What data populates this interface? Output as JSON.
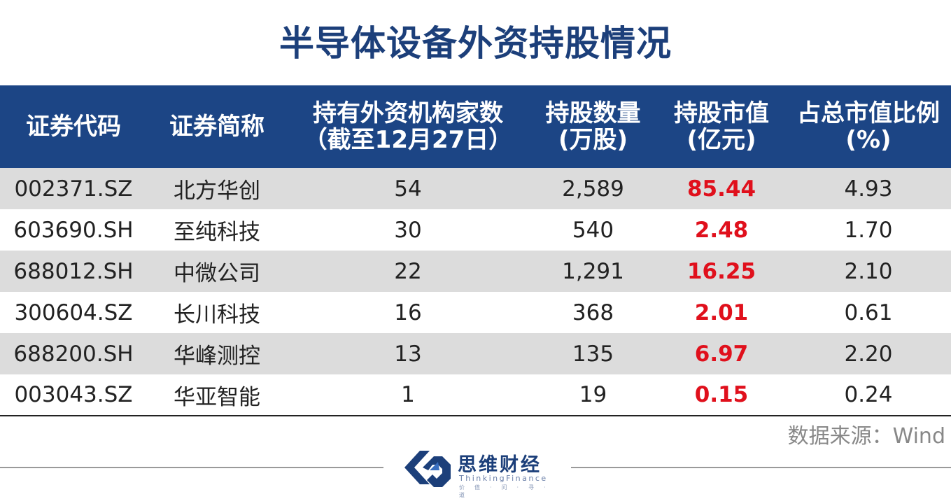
{
  "title": "半导体设备外资持股情况",
  "colors": {
    "header_bg": "#1c4585",
    "title": "#1c3f7a",
    "highlight": "#e0101c",
    "band": "#dcdcdc"
  },
  "chart_data": {
    "type": "table",
    "columns": [
      [
        "证券代码"
      ],
      [
        "证券简称"
      ],
      [
        "持有外资机构家数",
        "（截至12月27日）"
      ],
      [
        "持股数量",
        "(万股)"
      ],
      [
        "持股市值",
        "(亿元)"
      ],
      [
        "占总市值比例",
        "(%)"
      ]
    ],
    "rows": [
      [
        "002371.SZ",
        "北方华创",
        "54",
        "2,589",
        "85.44",
        "4.93"
      ],
      [
        "603690.SH",
        "至纯科技",
        "30",
        "540",
        "2.48",
        "1.70"
      ],
      [
        "688012.SH",
        "中微公司",
        "22",
        "1,291",
        "16.25",
        "2.10"
      ],
      [
        "300604.SZ",
        "长川科技",
        "16",
        "368",
        "2.01",
        "0.61"
      ],
      [
        "688200.SH",
        "华峰测控",
        "13",
        "135",
        "6.97",
        "2.20"
      ],
      [
        "003043.SZ",
        "华亚智能",
        "1",
        "19",
        "0.15",
        "0.24"
      ]
    ]
  },
  "source": "数据来源：Wind",
  "logo": {
    "name": "思维财经",
    "english": "ThinkingFinance",
    "tagline": "价值·问·寻·道"
  }
}
